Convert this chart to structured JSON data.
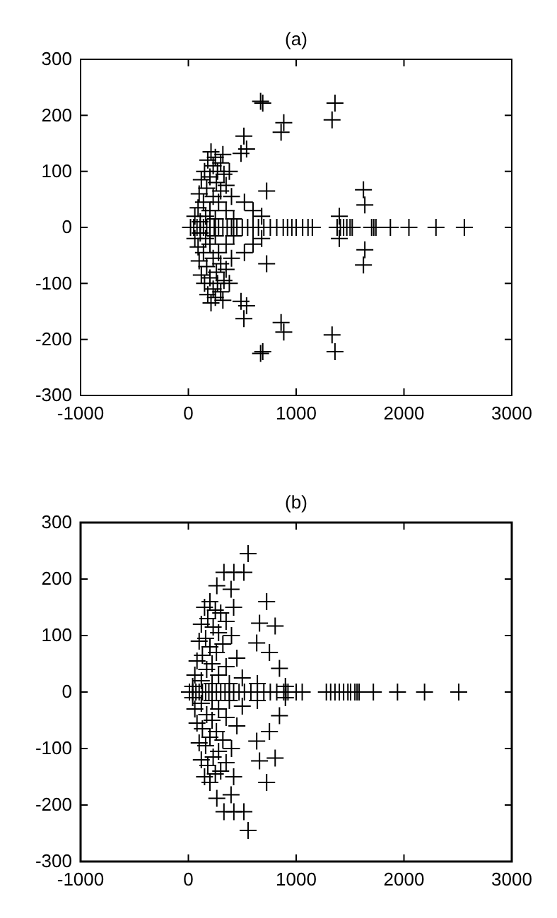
{
  "chart_data": [
    {
      "type": "scatter",
      "title": "(a)",
      "marker": "cross",
      "color": "#000000",
      "grid": false,
      "xlim": [
        -1000,
        3000
      ],
      "xticks": [
        -1000,
        0,
        1000,
        2000,
        3000
      ],
      "ylim": [
        -300,
        300
      ],
      "yticks": [
        -300,
        -200,
        -100,
        0,
        100,
        200,
        300
      ],
      "x": [
        670,
        690,
        885,
        860,
        515,
        488,
        540,
        726,
        1360,
        1333,
        1624,
        1637,
        210,
        250,
        180,
        300,
        230,
        150,
        270,
        330,
        200,
        120,
        260,
        350,
        170,
        300,
        100,
        230,
        400,
        140,
        280,
        520,
        90,
        200,
        350,
        600,
        60,
        160,
        250,
        420,
        110,
        680,
        1400,
        380,
        320,
        670,
        690,
        885,
        860,
        515,
        488,
        540,
        726,
        1360,
        1333,
        1624,
        1637,
        210,
        250,
        180,
        300,
        230,
        150,
        270,
        330,
        200,
        120,
        260,
        350,
        170,
        300,
        100,
        230,
        400,
        140,
        280,
        520,
        90,
        200,
        350,
        600,
        60,
        160,
        250,
        420,
        110,
        680,
        1400,
        380,
        320,
        20,
        50,
        80,
        110,
        140,
        170,
        200,
        240,
        280,
        320,
        360,
        400,
        450,
        500,
        550,
        600,
        650,
        700,
        760,
        820,
        880,
        920,
        960,
        1000,
        1060,
        1110,
        1150,
        1380,
        1410,
        1440,
        1470,
        1500,
        1520,
        1700,
        1720,
        1740,
        1874,
        2046,
        2297,
        2560
      ],
      "values": [
        225,
        222,
        187,
        170,
        163,
        132,
        140,
        65,
        222,
        192,
        67,
        40,
        135,
        125,
        120,
        115,
        110,
        100,
        100,
        95,
        90,
        85,
        80,
        75,
        70,
        65,
        60,
        55,
        55,
        45,
        45,
        45,
        35,
        30,
        30,
        30,
        20,
        20,
        15,
        15,
        10,
        20,
        20,
        100,
        130,
        -225,
        -222,
        -187,
        -170,
        -163,
        -132,
        -140,
        -65,
        -222,
        -192,
        -67,
        -40,
        -135,
        -125,
        -120,
        -115,
        -110,
        -100,
        -100,
        -95,
        -90,
        -85,
        -80,
        -75,
        -70,
        -65,
        -60,
        -55,
        -55,
        -45,
        -45,
        -45,
        -35,
        -30,
        -30,
        -30,
        -20,
        -20,
        -15,
        -15,
        -10,
        -20,
        -20,
        -100,
        -130,
        0,
        0,
        0,
        0,
        0,
        0,
        0,
        0,
        0,
        0,
        0,
        0,
        0,
        0,
        0,
        0,
        0,
        0,
        0,
        0,
        0,
        0,
        0,
        0,
        0,
        0,
        0,
        0,
        0,
        0,
        0,
        0,
        0,
        0,
        0,
        0,
        0,
        0,
        0,
        0
      ]
    },
    {
      "type": "scatter",
      "title": "(b)",
      "marker": "cross",
      "color": "#000000",
      "grid": false,
      "xlim": [
        -1000,
        3000
      ],
      "xticks": [
        -1000,
        0,
        1000,
        2000,
        3000
      ],
      "ylim": [
        -300,
        300
      ],
      "yticks": [
        -300,
        -200,
        -100,
        0,
        100,
        200,
        300
      ],
      "x": [
        554,
        422,
        515,
        330,
        264,
        396,
        726,
        805,
        660,
        752,
        634,
        845,
        200,
        150,
        250,
        300,
        180,
        350,
        120,
        230,
        280,
        400,
        160,
        100,
        320,
        200,
        260,
        130,
        450,
        80,
        220,
        350,
        170,
        60,
        280,
        500,
        120,
        220,
        380,
        40,
        640,
        900,
        420,
        554,
        422,
        515,
        330,
        264,
        396,
        726,
        805,
        660,
        752,
        634,
        845,
        200,
        150,
        250,
        300,
        180,
        350,
        120,
        230,
        280,
        400,
        160,
        100,
        320,
        200,
        260,
        130,
        450,
        80,
        220,
        350,
        170,
        60,
        280,
        500,
        120,
        220,
        380,
        40,
        640,
        900,
        420,
        10,
        40,
        70,
        100,
        130,
        160,
        190,
        220,
        260,
        300,
        340,
        380,
        420,
        470,
        520,
        580,
        640,
        700,
        760,
        820,
        885,
        905,
        924,
        1000,
        1056,
        1280,
        1320,
        1360,
        1400,
        1440,
        1480,
        1505,
        1545,
        1565,
        1584,
        1716,
        1940,
        2191,
        2508
      ],
      "values": [
        245,
        212,
        212,
        212,
        188,
        182,
        160,
        117,
        122,
        70,
        87,
        42,
        160,
        150,
        145,
        140,
        130,
        125,
        120,
        115,
        105,
        100,
        95,
        90,
        85,
        80,
        70,
        65,
        60,
        55,
        50,
        45,
        40,
        30,
        30,
        25,
        20,
        15,
        15,
        10,
        15,
        10,
        150,
        -245,
        -212,
        -212,
        -212,
        -188,
        -182,
        -160,
        -117,
        -122,
        -70,
        -87,
        -42,
        -160,
        -150,
        -145,
        -140,
        -130,
        -125,
        -120,
        -115,
        -105,
        -100,
        -95,
        -90,
        -85,
        -80,
        -70,
        -65,
        -60,
        -55,
        -50,
        -45,
        -40,
        -30,
        -30,
        -25,
        -20,
        -15,
        -15,
        -10,
        -15,
        -10,
        -150,
        0,
        0,
        0,
        0,
        0,
        0,
        0,
        0,
        0,
        0,
        0,
        0,
        0,
        0,
        0,
        0,
        0,
        0,
        0,
        0,
        0,
        0,
        0,
        0,
        0,
        0,
        0,
        0,
        0,
        0,
        0,
        0,
        0,
        0,
        0,
        0,
        0,
        0,
        0
      ]
    }
  ]
}
